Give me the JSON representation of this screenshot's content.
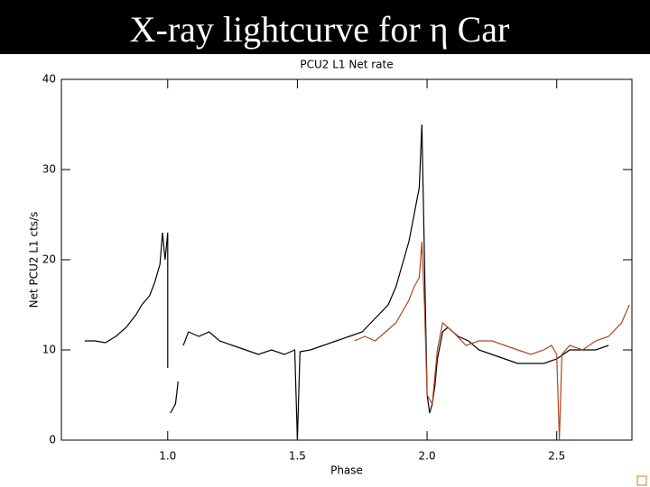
{
  "slide": {
    "title": "X-ray lightcurve for η Car"
  },
  "chart_data": {
    "type": "line",
    "title": "PCU2 L1 Net rate",
    "x_label": "Phase",
    "y_label": "Net PCU2 L1 cts/s",
    "xlim": [
      0.59,
      2.79
    ],
    "ylim": [
      0,
      40
    ],
    "xticks": [
      {
        "value": 1,
        "label": "1.0"
      },
      1.5,
      {
        "value": 2,
        "label": "2.0"
      },
      2.5
    ],
    "yticks": [
      0,
      10,
      20,
      30,
      40
    ],
    "series": [
      {
        "color": "#000000",
        "x": [
          0.68,
          0.72,
          0.76,
          0.8,
          0.84,
          0.88,
          0.9,
          0.93,
          0.95,
          0.97,
          0.98,
          0.99,
          1.0,
          1.0,
          1.0,
          1.01,
          1.03,
          1.04,
          1.05,
          1.06,
          1.08,
          1.12,
          1.16,
          1.2,
          1.25,
          1.3,
          1.35,
          1.4,
          1.45,
          1.49,
          1.5,
          1.51,
          1.55,
          1.6,
          1.65,
          1.7,
          1.75,
          1.8,
          1.85,
          1.88,
          1.9,
          1.93,
          1.95,
          1.97,
          1.98,
          1.99,
          2.0,
          2.01,
          2.02,
          2.03,
          2.04,
          2.06,
          2.08,
          2.12,
          2.16,
          2.2,
          2.25,
          2.3,
          2.35,
          2.4,
          2.45,
          2.5,
          2.55,
          2.6,
          2.65,
          2.7
        ],
        "values": [
          11,
          11,
          10.8,
          11.5,
          12.5,
          14,
          15,
          16,
          17.5,
          19.5,
          23,
          20,
          23,
          8,
          null,
          3,
          4,
          6.5,
          null,
          10.5,
          12,
          11.5,
          12,
          11,
          10.5,
          10,
          9.5,
          10,
          9.5,
          10,
          0,
          9.8,
          10,
          10.5,
          11,
          11.5,
          12,
          13.5,
          15,
          17,
          19,
          22,
          25,
          28,
          35,
          20,
          5,
          3,
          4,
          6,
          9,
          12,
          12.5,
          11.5,
          11,
          10,
          9.5,
          9,
          8.5,
          8.5,
          8.5,
          9,
          10,
          10,
          10,
          10.5
        ]
      },
      {
        "color": "#b5441c",
        "x": [
          1.72,
          1.76,
          1.8,
          1.84,
          1.88,
          1.9,
          1.93,
          1.95,
          1.97,
          1.98,
          1.99,
          2.0,
          2.02,
          2.04,
          2.06,
          2.1,
          2.15,
          2.2,
          2.25,
          2.3,
          2.35,
          2.4,
          2.45,
          2.48,
          2.5,
          2.51,
          2.52,
          2.55,
          2.6,
          2.65,
          2.7,
          2.75,
          2.78
        ],
        "values": [
          11,
          11.5,
          11,
          12,
          13,
          14,
          15.5,
          17,
          18,
          22,
          15,
          5,
          4,
          10,
          13,
          12,
          10.5,
          11,
          11,
          10.5,
          10,
          9.5,
          10,
          10.5,
          9.5,
          0,
          9.5,
          10.5,
          10,
          11,
          11.5,
          13,
          15
        ]
      }
    ]
  }
}
